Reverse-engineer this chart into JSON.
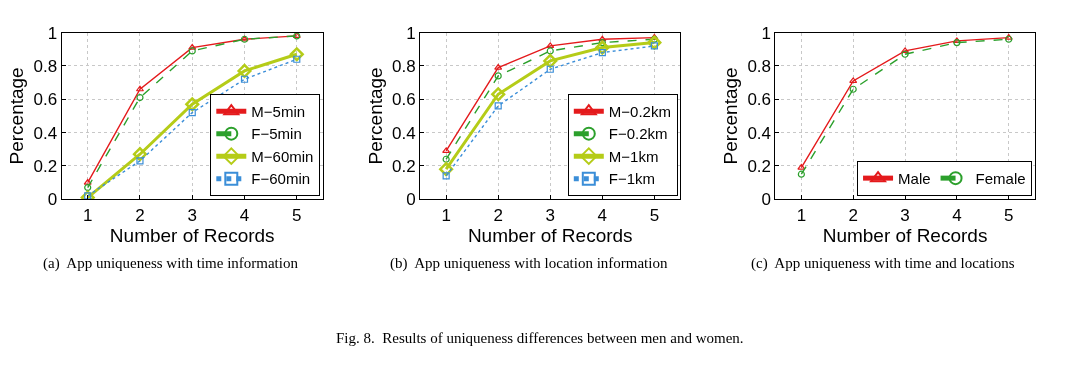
{
  "chart_data": [
    {
      "type": "line",
      "xlabel": "Number of Records",
      "ylabel": "Percentage",
      "x": [
        1,
        2,
        3,
        4,
        5
      ],
      "xlim": [
        0.5,
        5.5
      ],
      "xticks": [
        1,
        2,
        3,
        4,
        5
      ],
      "ylim": [
        0,
        1
      ],
      "yticks": [
        0,
        0.2,
        0.4,
        0.6,
        0.8,
        1
      ],
      "grid": true,
      "legend": "bottom right",
      "annotations": [
        "(a)  App uniqueness with time information"
      ],
      "series": [
        {
          "name": "M−5min",
          "color": "#e41a1c",
          "marker": "triangle",
          "line_style": "solid",
          "values": [
            0.1,
            0.66,
            0.91,
            0.96,
            0.98
          ]
        },
        {
          "name": "F−5min",
          "color": "#2ca02c",
          "marker": "circle",
          "line_style": "dashed",
          "values": [
            0.07,
            0.61,
            0.89,
            0.96,
            0.98
          ]
        },
        {
          "name": "M−60min",
          "color": "#b5cc18",
          "marker": "diamond",
          "line_style": "solid",
          "values": [
            0.01,
            0.27,
            0.57,
            0.77,
            0.87
          ]
        },
        {
          "name": "F−60min",
          "color": "#3b8ed8",
          "marker": "square",
          "line_style": "dotted",
          "values": [
            0.02,
            0.23,
            0.52,
            0.72,
            0.84
          ]
        }
      ]
    },
    {
      "type": "line",
      "xlabel": "Number of Records",
      "ylabel": "Percentage",
      "x": [
        1,
        2,
        3,
        4,
        5
      ],
      "xlim": [
        0.5,
        5.5
      ],
      "xticks": [
        1,
        2,
        3,
        4,
        5
      ],
      "ylim": [
        0,
        1
      ],
      "yticks": [
        0,
        0.2,
        0.4,
        0.6,
        0.8,
        1
      ],
      "grid": true,
      "legend": "bottom right",
      "annotations": [
        "(b)  App uniqueness with location information",
        "Fig. 8.  Results of uniqueness differences between men and women."
      ],
      "series": [
        {
          "name": "M−0.2km",
          "color": "#e41a1c",
          "marker": "triangle",
          "line_style": "solid",
          "values": [
            0.29,
            0.79,
            0.92,
            0.96,
            0.97
          ]
        },
        {
          "name": "F−0.2km",
          "color": "#2ca02c",
          "marker": "circle",
          "line_style": "dashed",
          "values": [
            0.24,
            0.74,
            0.89,
            0.94,
            0.96
          ]
        },
        {
          "name": "M−1km",
          "color": "#b5cc18",
          "marker": "diamond",
          "line_style": "solid",
          "values": [
            0.18,
            0.63,
            0.83,
            0.91,
            0.94
          ]
        },
        {
          "name": "F−1km",
          "color": "#3b8ed8",
          "marker": "square",
          "line_style": "dotted",
          "values": [
            0.14,
            0.56,
            0.78,
            0.88,
            0.92
          ]
        }
      ]
    },
    {
      "type": "line",
      "xlabel": "Number of Records",
      "ylabel": "Percentage",
      "x": [
        1,
        2,
        3,
        4,
        5
      ],
      "xlim": [
        0.5,
        5.5
      ],
      "xticks": [
        1,
        2,
        3,
        4,
        5
      ],
      "ylim": [
        0,
        1
      ],
      "yticks": [
        0,
        0.2,
        0.4,
        0.6,
        0.8,
        1
      ],
      "grid": true,
      "legend": "bottom",
      "annotations": [
        "(c)  App uniqueness with time and locations"
      ],
      "series": [
        {
          "name": "Male",
          "color": "#e41a1c",
          "marker": "triangle",
          "line_style": "solid",
          "values": [
            0.19,
            0.71,
            0.89,
            0.95,
            0.97
          ]
        },
        {
          "name": "Female",
          "color": "#2ca02c",
          "marker": "circle",
          "line_style": "dashed",
          "values": [
            0.15,
            0.66,
            0.87,
            0.94,
            0.96
          ]
        }
      ]
    }
  ]
}
